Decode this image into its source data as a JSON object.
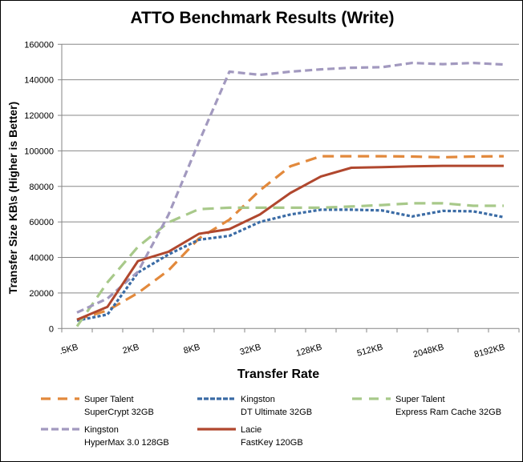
{
  "chart_data": {
    "type": "line",
    "title": "ATTO Benchmark Results (Write)",
    "xlabel": "Transfer Rate",
    "ylabel": "Transfer Size  KB\\s  (Higher is Better)",
    "ylim": [
      0,
      160000
    ],
    "yticks": [
      0,
      20000,
      40000,
      60000,
      80000,
      100000,
      120000,
      140000,
      160000
    ],
    "grid": true,
    "legend_position": "bottom",
    "categories": [
      ".5KB",
      "",
      "2KB",
      "",
      "8KB",
      "",
      "32KB",
      "",
      "128KB",
      "",
      "512KB",
      "",
      "2048KB",
      "",
      "8192KB"
    ],
    "series": [
      {
        "name": "Super Talent SuperCrypt 32GB",
        "line1": "Super Talent",
        "line2": "SuperCrypt 32GB",
        "color": "#E2893C",
        "style": "longdash",
        "values": [
          5000,
          10200,
          20000,
          32700,
          50700,
          61300,
          77800,
          91300,
          97000,
          97000,
          97000,
          96800,
          96400,
          96800,
          97000
        ]
      },
      {
        "name": "Kingston DT Ultimate 32GB",
        "line1": "Kingston",
        "line2": "DT Ultimate 32GB",
        "color": "#3A6BA5",
        "style": "dot",
        "values": [
          4500,
          7900,
          31500,
          41700,
          50000,
          52200,
          60000,
          64200,
          66900,
          66900,
          66500,
          63100,
          66200,
          66000,
          62700
        ]
      },
      {
        "name": "Super Talent Express Ram Cache 32GB",
        "line1": "Super Talent",
        "line2": "Express Ram Cache 32GB",
        "color": "#A8C98A",
        "style": "longdash",
        "values": [
          1200,
          26000,
          46000,
          59700,
          67200,
          68000,
          68000,
          68000,
          68000,
          68700,
          69500,
          70500,
          70500,
          69100,
          69100
        ]
      },
      {
        "name": "Kingston HyperMax 3.0 128GB",
        "line1": "Kingston",
        "line2": "HyperMax 3.0 128GB",
        "color": "#A299BF",
        "style": "dash",
        "values": [
          9000,
          16900,
          32000,
          64000,
          105000,
          144600,
          142800,
          144600,
          145900,
          146800,
          147100,
          149500,
          148800,
          149500,
          148600
        ]
      },
      {
        "name": "Lacie FastKey 120GB",
        "line1": "Lacie",
        "line2": "FastKey 120GB",
        "color": "#B0472E",
        "style": "solid",
        "values": [
          5000,
          12200,
          38000,
          43200,
          53300,
          56000,
          64200,
          76300,
          85600,
          90500,
          90800,
          91300,
          91600,
          91600,
          91600
        ]
      }
    ]
  },
  "colors": {
    "gridline": "#888888",
    "axis": "#868686"
  }
}
